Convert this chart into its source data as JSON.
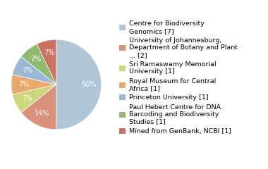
{
  "labels": [
    "Centre for Biodiversity\nGenomics [7]",
    "University of Johannesburg,\nDepartment of Botany and Plant\n... [2]",
    "Sri Ramaswamy Memorial\nUniversity [1]",
    "Royal Museum for Central\nAfrica [1]",
    "Princeton University [1]",
    "Paul Hebert Centre for DNA\nBarcoding and Biodiversity\nStudies [1]",
    "Mined from GenBank, NCBI [1]"
  ],
  "values": [
    7,
    2,
    1,
    1,
    1,
    1,
    1
  ],
  "colors": [
    "#aec6d8",
    "#d9917a",
    "#cdd67a",
    "#e8a96a",
    "#9ab8d4",
    "#8fba72",
    "#cc7060"
  ],
  "startangle": 90,
  "background_color": "#ffffff",
  "pct_fontsize": 7.0,
  "legend_fontsize": 6.8
}
